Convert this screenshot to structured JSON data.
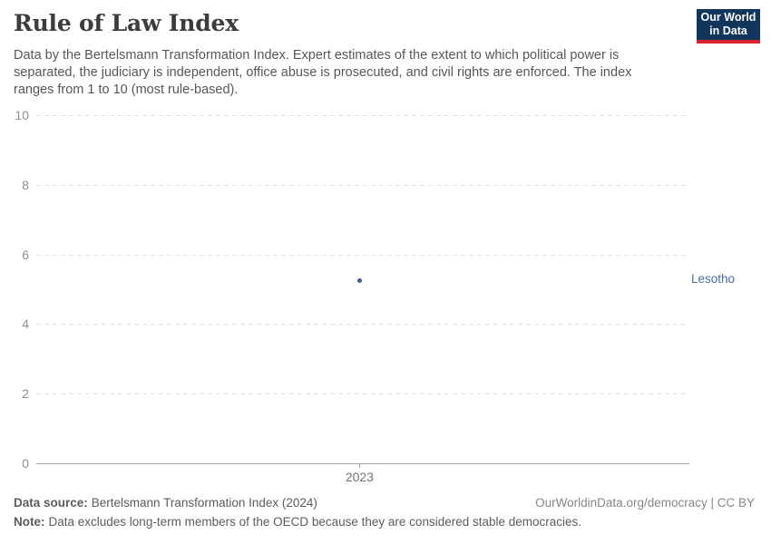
{
  "header": {
    "title": "Rule of Law Index",
    "subtitle_lines": [
      "Data by the Bertelsmann Transformation Index. Expert estimates of the extent to which political power is",
      "separated, the judiciary is independent, office abuse is prosecuted, and civil rights are enforced. The index",
      "ranges from 1 to 10 (most rule-based)."
    ],
    "logo": {
      "line1": "Our World",
      "line2": "in Data"
    }
  },
  "chart_data": {
    "type": "scatter",
    "title": "Rule of Law Index",
    "xlabel": "",
    "ylabel": "",
    "ylim": [
      0,
      10
    ],
    "yticks": [
      0,
      2,
      4,
      6,
      8,
      10
    ],
    "xticks": [
      2023
    ],
    "grid": "horizontal-dashed",
    "series": [
      {
        "name": "Lesotho",
        "x": [
          2023
        ],
        "y": [
          5.25
        ],
        "color": "#3e5f9e"
      }
    ],
    "layout": {
      "x_frac": 0.495,
      "entity_label_position": "right-of-plot"
    }
  },
  "footer": {
    "source_label": "Data source:",
    "source_text": "Bertelsmann Transformation Index (2024)",
    "license_text": "OurWorldinData.org/democracy | CC BY",
    "note_label": "Note:",
    "note_text": "Data excludes long-term members of the OECD because they are considered stable democracies."
  },
  "colors": {
    "accent_blue": "#3e5f9e",
    "entity_label_blue": "#4a69a3",
    "logo_bg": "#12355b",
    "logo_stripe": "#d8252e",
    "gridline": "#e1e1e1",
    "axis_line": "#a3a3a3",
    "title_text": "#3c3c3c",
    "body_text": "#575757"
  }
}
